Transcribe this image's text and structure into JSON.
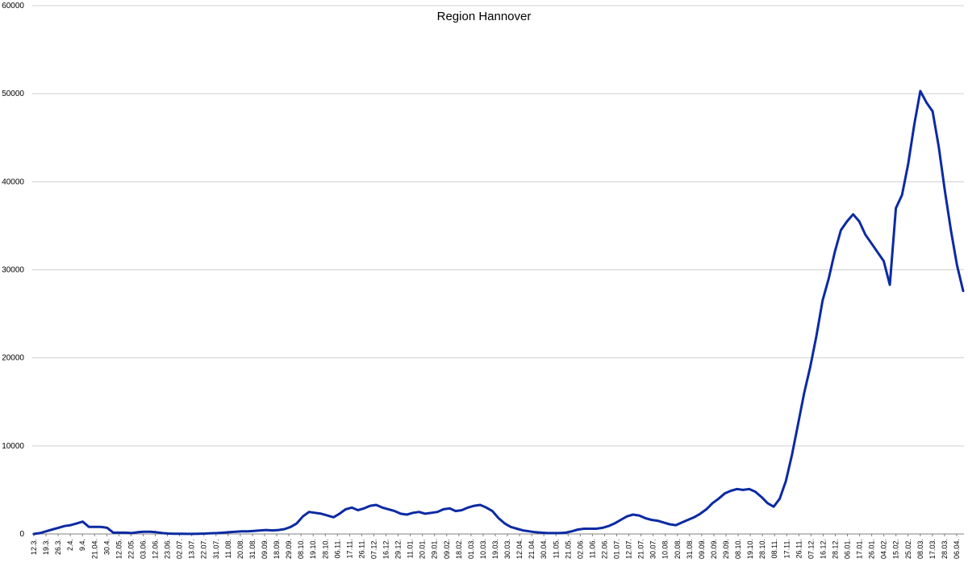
{
  "chart_data": {
    "type": "line",
    "title": "Region Hannover",
    "xlabel": "",
    "ylabel": "",
    "ylim": [
      0,
      60000
    ],
    "y_ticks": [
      "0",
      "10000",
      "20000",
      "30000",
      "40000",
      "50000",
      "60000"
    ],
    "grid": true,
    "legend": "none",
    "colors": {
      "line": "#0b2aa3",
      "grid": "#d0d0d0"
    },
    "x_tick_labels": [
      "12.3.",
      "19.3.",
      "26.3.",
      "2.4.",
      "9.4.",
      "21.04.",
      "30.4.",
      "12.05.",
      "22.05.",
      "03.06.",
      "12.06.",
      "23.06.",
      "02.07.",
      "13.07.",
      "22.07.",
      "31.07.",
      "11.08.",
      "20.08.",
      "31.08.",
      "09.09.",
      "18.09.",
      "29.09.",
      "08.10.",
      "19.10.",
      "28.10.",
      "06.11.",
      "17.11.",
      "26.11.",
      "07.12.",
      "16.12.",
      "29.12.",
      "11.01.",
      "20.01.",
      "29.01.",
      "09.02.",
      "18.02.",
      "01.03.",
      "10.03.",
      "19.03.",
      "30.03.",
      "12.04.",
      "21.04.",
      "30.04.",
      "11.05.",
      "21.05.",
      "02.06.",
      "11.06.",
      "22.06.",
      "01.07.",
      "12.07.",
      "21.07.",
      "30.07.",
      "10.08.",
      "20.08.",
      "31.08.",
      "09.09.",
      "20.09.",
      "29.09.",
      "08.10.",
      "19.10.",
      "28.10.",
      "08.11.",
      "17.11.",
      "26.11.",
      "07.12.",
      "16.12.",
      "28.12.",
      "06.01.",
      "17.01.",
      "26.01.",
      "04.02.",
      "15.02.",
      "25.02.",
      "08.03.",
      "17.03.",
      "28.03.",
      "06.04."
    ],
    "series": [
      {
        "values": [
          0,
          100,
          300,
          500,
          700,
          900,
          1000,
          1200,
          1400,
          800,
          800,
          800,
          700,
          150,
          150,
          150,
          100,
          200,
          250,
          250,
          200,
          100,
          50,
          30,
          20,
          10,
          10,
          30,
          50,
          80,
          100,
          150,
          200,
          250,
          300,
          300,
          350,
          400,
          450,
          400,
          450,
          550,
          800,
          1200,
          2000,
          2500,
          2400,
          2300,
          2100,
          1900,
          2300,
          2800,
          3000,
          2700,
          2900,
          3200,
          3300,
          3000,
          2800,
          2600,
          2300,
          2200,
          2400,
          2500,
          2300,
          2400,
          2500,
          2800,
          2900,
          2600,
          2700,
          3000,
          3200,
          3300,
          3000,
          2600,
          1800,
          1200,
          800,
          600,
          400,
          300,
          200,
          150,
          100,
          100,
          100,
          150,
          300,
          500,
          600,
          600,
          600,
          700,
          900,
          1200,
          1600,
          2000,
          2200,
          2100,
          1800,
          1600,
          1500,
          1300,
          1100,
          1000,
          1300,
          1600,
          1900,
          2300,
          2800,
          3500,
          4000,
          4600,
          4900,
          5100,
          5000,
          5100,
          4800,
          4200,
          3500,
          3100,
          4000,
          6000,
          9000,
          12500,
          16000,
          19000,
          22500,
          26500,
          29000,
          32000,
          34500,
          35500,
          36300,
          35500,
          34000,
          33000,
          32000,
          31000,
          28300,
          37000,
          38500,
          42000,
          46500,
          50300,
          49000,
          48000,
          44000,
          39000,
          34500,
          30500,
          27600
        ]
      }
    ]
  }
}
